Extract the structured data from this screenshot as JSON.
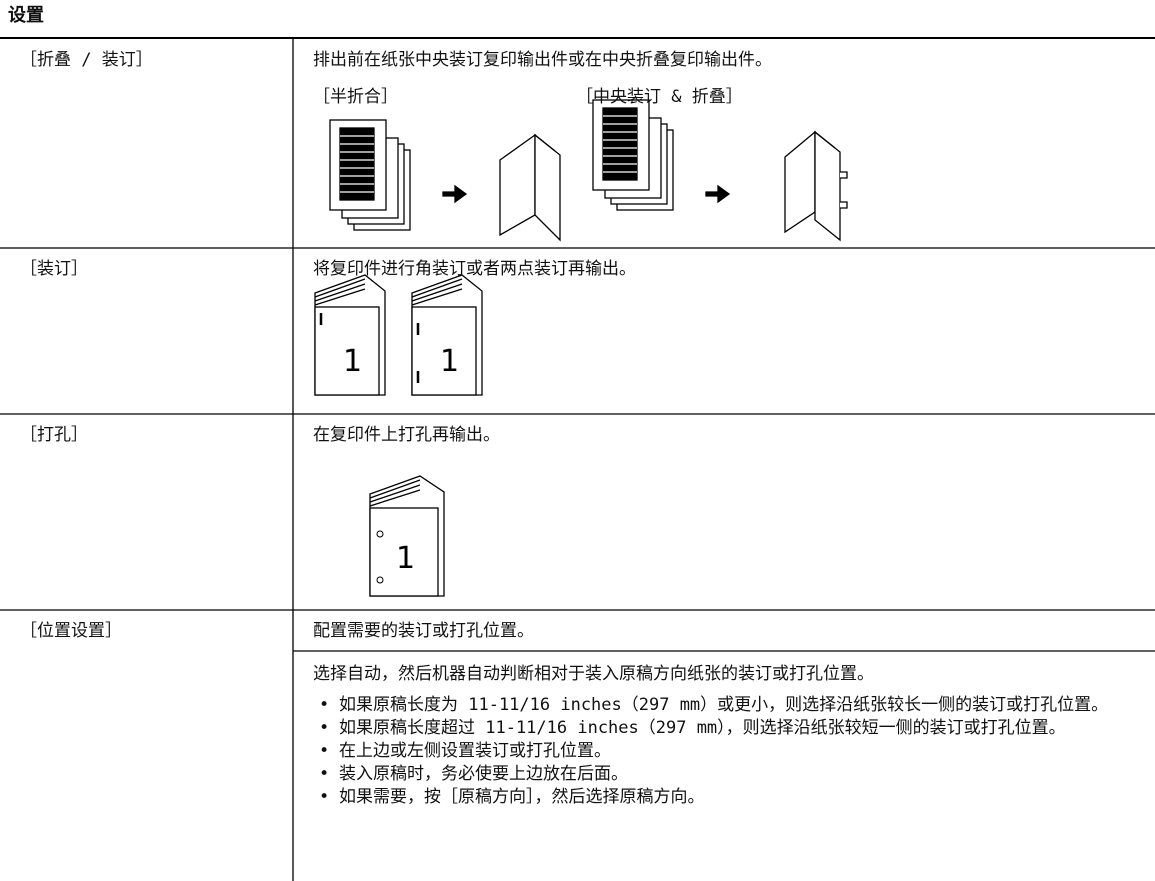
{
  "header": {
    "title": "设置"
  },
  "table": {
    "rows": [
      {
        "setting": "［折叠 / 装订］",
        "description": "排出前在纸张中央装订复印输出件或在中央折叠复印输出件。",
        "figure_labels": [
          "［半折合］",
          "［中央装订 & 折叠］"
        ]
      },
      {
        "setting": "［装订］",
        "description": "将复印件进行角装订或者两点装订再输出。",
        "page_number": "1"
      },
      {
        "setting": "［打孔］",
        "description": "在复印件上打孔再输出。",
        "page_number": "1"
      },
      {
        "setting": "［位置设置］",
        "description": "配置需要的装订或打孔位置。",
        "details": {
          "intro": "选择自动，然后机器自动判断相对于装入原稿方向纸张的装订或打孔位置。",
          "bullets": [
            "如果原稿长度为 11-11/16 inches（297 mm）或更小，则选择沿纸张较长一侧的装订或打孔位置。",
            "如果原稿长度超过 11-11/16 inches（297 mm），则选择沿纸张较短一侧的装订或打孔位置。",
            "在上边或左侧设置装订或打孔位置。",
            "装入原稿时，务必使要上边放在后面。",
            "如果需要，按［原稿方向］，然后选择原稿方向。"
          ]
        }
      }
    ]
  }
}
